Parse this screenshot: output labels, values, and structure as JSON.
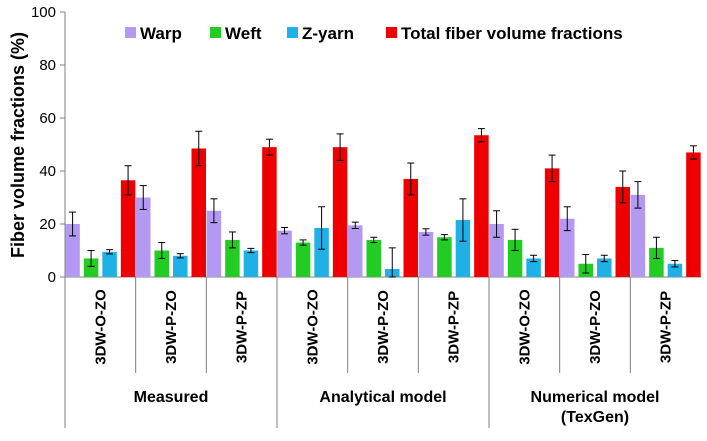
{
  "chart_data": {
    "type": "bar",
    "ylabel": "Fiber volume fractions (%)",
    "ylim": [
      0,
      100
    ],
    "yticks": [
      0,
      20,
      40,
      60,
      80,
      100
    ],
    "grid": false,
    "legend_position": "top",
    "categories": [
      "3DW-O-ZO",
      "3DW-P-ZO",
      "3DW-P-ZP",
      "3DW-O-ZO",
      "3DW-P-ZO",
      "3DW-P-ZP",
      "3DW-O-ZO",
      "3DW-P-ZO",
      "3DW-P-ZP"
    ],
    "groups": [
      {
        "label": "Measured",
        "lines": [
          "Measured"
        ],
        "count": 3
      },
      {
        "label": "Analytical model",
        "lines": [
          "Analytical model"
        ],
        "count": 3
      },
      {
        "label": "Numerical model (TexGen)",
        "lines": [
          "Numerical model",
          "(TexGen)"
        ],
        "count": 3
      }
    ],
    "series": [
      {
        "name": "Warp",
        "color": "#b399f2",
        "values": [
          20,
          30,
          25,
          17.5,
          19.5,
          17,
          20,
          22,
          31
        ],
        "errors": [
          4.5,
          4.5,
          4.5,
          1.2,
          1.2,
          1.2,
          5,
          4.5,
          5
        ]
      },
      {
        "name": "Weft",
        "color": "#22cc22",
        "values": [
          7,
          10,
          14,
          13,
          14,
          15,
          14,
          5,
          11
        ],
        "errors": [
          3,
          3,
          3,
          1,
          1,
          1,
          4,
          3.5,
          4
        ]
      },
      {
        "name": "Z-yarn",
        "color": "#1fb0e6",
        "values": [
          9.5,
          8,
          10,
          18.5,
          3,
          21.5,
          7,
          7,
          5
        ],
        "errors": [
          0.8,
          0.8,
          0.8,
          8,
          8,
          8,
          1.2,
          1.2,
          1.2
        ]
      },
      {
        "name": "Total fiber volume fractions",
        "color": "#ee0000",
        "values": [
          36.5,
          48.5,
          49,
          49,
          37,
          53.5,
          41,
          34,
          47
        ],
        "errors": [
          5.5,
          6.5,
          3,
          5,
          6,
          2.5,
          5,
          6,
          2.5
        ]
      }
    ]
  }
}
